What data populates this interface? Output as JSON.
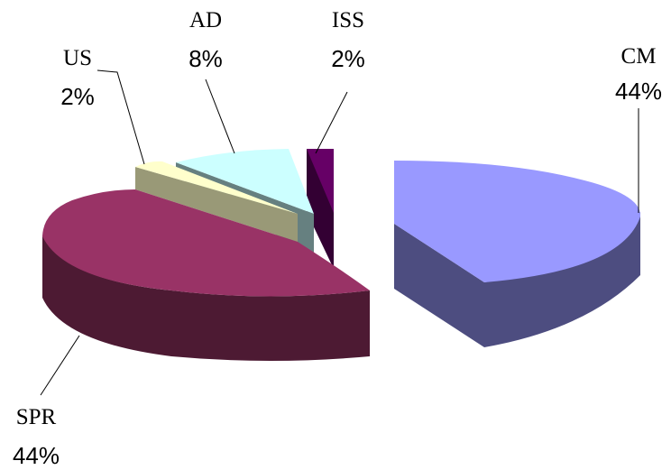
{
  "chart_data": {
    "type": "pie",
    "style": "3d-exploded",
    "title": "",
    "slices": [
      {
        "label": "CM",
        "percent_label": "44%",
        "value": 44,
        "color": "#9999ff",
        "side_color": "#4d4d80"
      },
      {
        "label": "ISS",
        "percent_label": "2%",
        "value": 2,
        "color": "#660066",
        "side_color": "#330033"
      },
      {
        "label": "AD",
        "percent_label": "8%",
        "value": 8,
        "color": "#ccffff",
        "side_color": "#668080"
      },
      {
        "label": "US",
        "percent_label": "2%",
        "value": 2,
        "color": "#ffffcc",
        "side_color": "#999977"
      },
      {
        "label": "SPR",
        "percent_label": "44%",
        "value": 44,
        "color": "#993366",
        "side_color": "#4d1a33"
      }
    ],
    "legend": "none"
  }
}
